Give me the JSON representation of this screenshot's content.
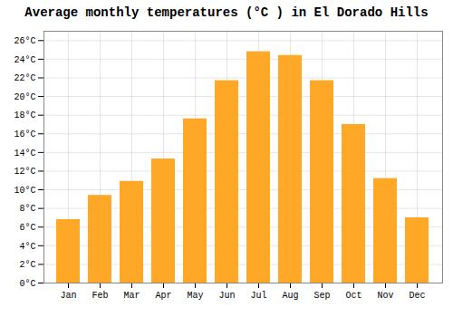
{
  "chart_data": {
    "type": "bar",
    "title": "Average monthly temperatures (°C ) in El Dorado Hills",
    "categories": [
      "Jan",
      "Feb",
      "Mar",
      "Apr",
      "May",
      "Jun",
      "Jul",
      "Aug",
      "Sep",
      "Oct",
      "Nov",
      "Dec"
    ],
    "values": [
      6.8,
      9.4,
      10.9,
      13.3,
      17.6,
      21.7,
      24.8,
      24.4,
      21.7,
      17.0,
      11.2,
      7.0
    ],
    "color": "#FFA726",
    "ylim": [
      0,
      27
    ],
    "yticks": [
      {
        "value": 0,
        "label": "0°C"
      },
      {
        "value": 2,
        "label": "2°C"
      },
      {
        "value": 4,
        "label": "4°C"
      },
      {
        "value": 6,
        "label": "6°C"
      },
      {
        "value": 8,
        "label": "8°C"
      },
      {
        "value": 10,
        "label": "10°C"
      },
      {
        "value": 12,
        "label": "12°C"
      },
      {
        "value": 14,
        "label": "14°C"
      },
      {
        "value": 16,
        "label": "16°C"
      },
      {
        "value": 18,
        "label": "18°C"
      },
      {
        "value": 20,
        "label": "20°C"
      },
      {
        "value": 22,
        "label": "22°C"
      },
      {
        "value": 24,
        "label": "24°C"
      },
      {
        "value": 26,
        "label": "26°C"
      }
    ],
    "grid": true
  }
}
